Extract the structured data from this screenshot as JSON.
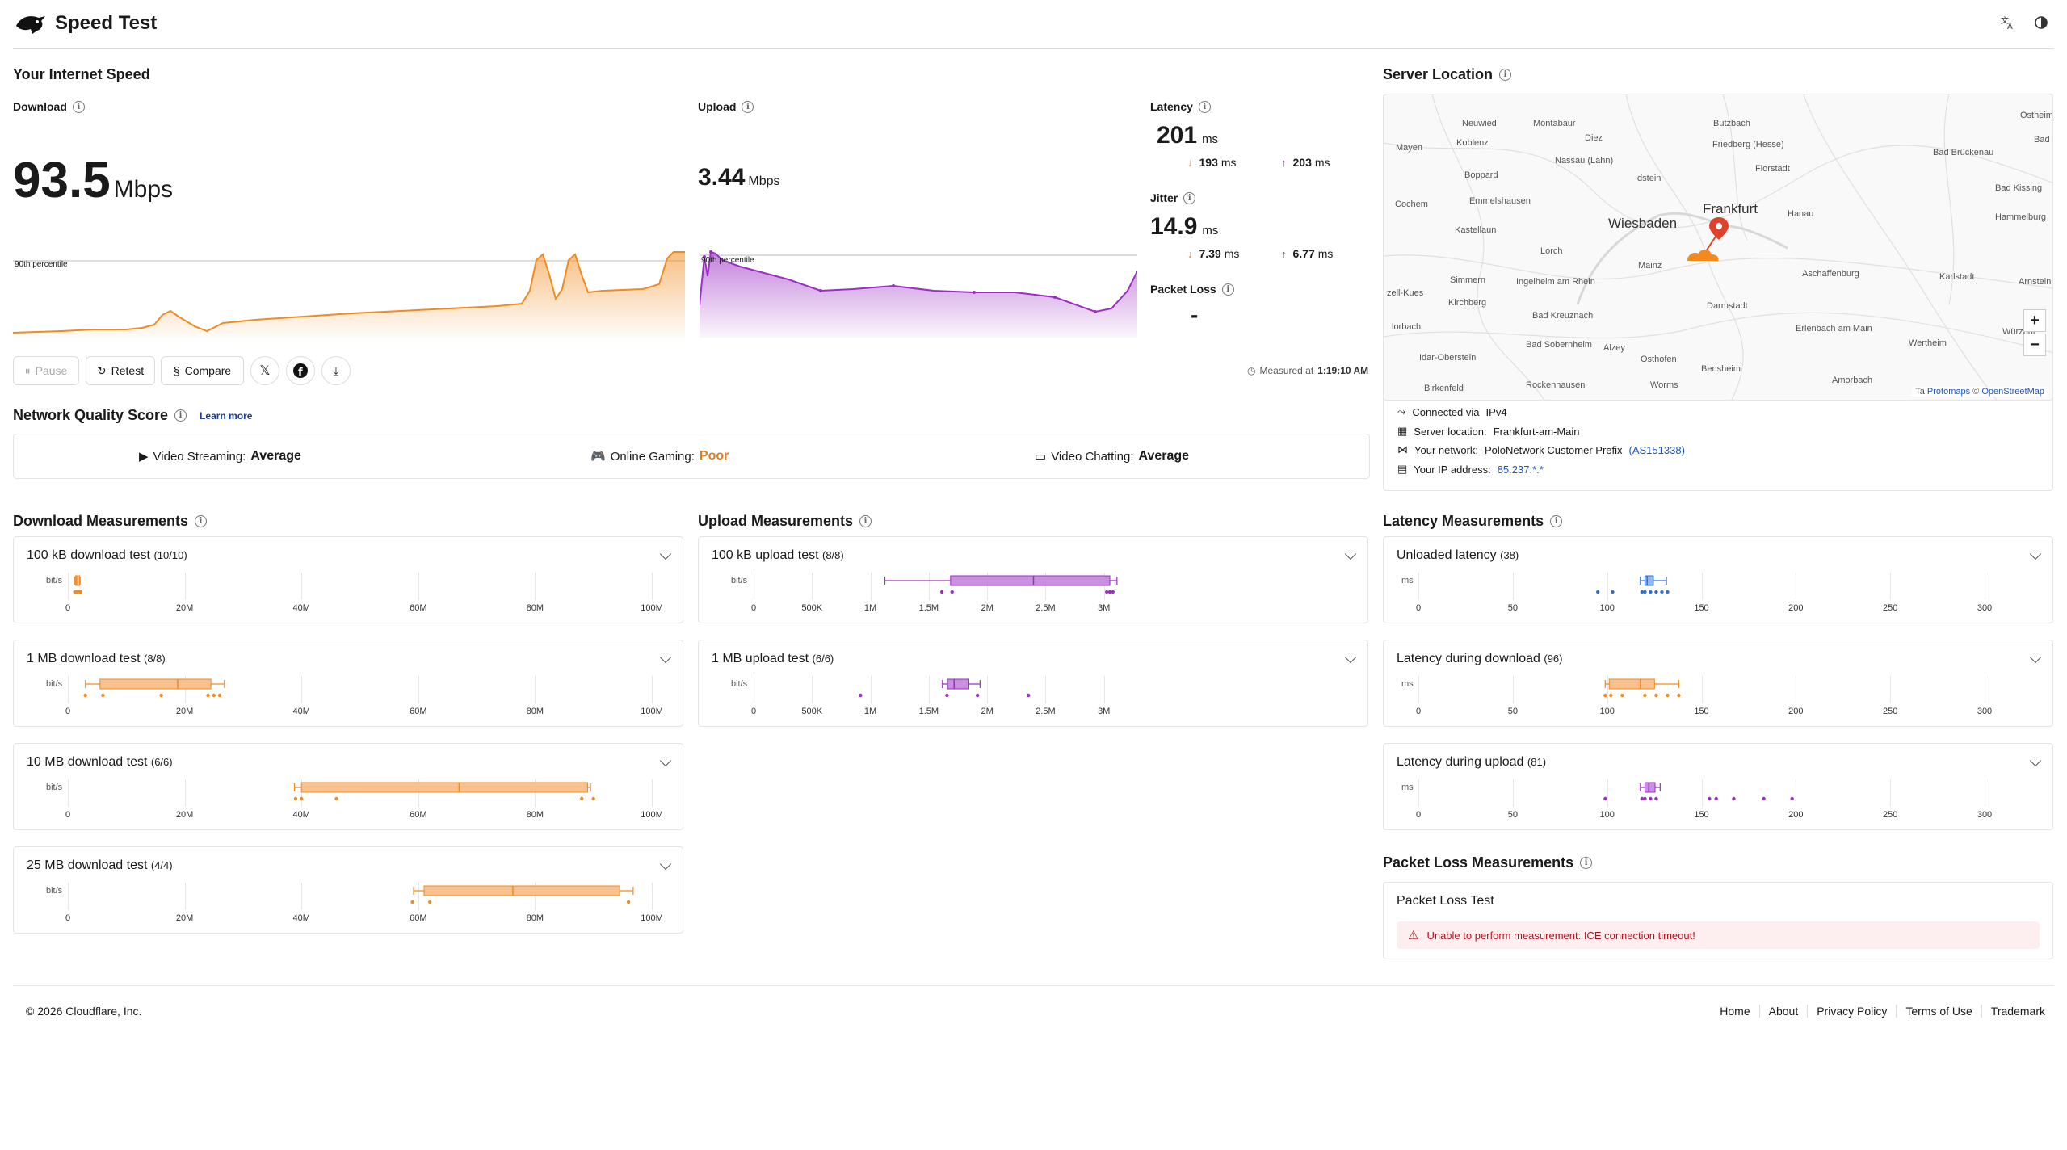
{
  "header": {
    "title": "Speed Test",
    "translate_icon": "translate-icon",
    "theme_icon": "theme-toggle-icon"
  },
  "speed": {
    "title": "Your Internet Speed",
    "download": {
      "label": "Download",
      "value": "93.5",
      "unit": "Mbps",
      "percentile_label": "90th percentile"
    },
    "upload": {
      "label": "Upload",
      "value": "3.44",
      "unit": "Mbps",
      "percentile_label": "90th percentile"
    },
    "latency": {
      "label": "Latency",
      "value": "201",
      "unit": "ms",
      "down": "193",
      "up": "203",
      "sub_unit": "ms"
    },
    "jitter": {
      "label": "Jitter",
      "value": "14.9",
      "unit": "ms",
      "down": "7.39",
      "up": "6.77",
      "sub_unit": "ms"
    },
    "packet_loss": {
      "label": "Packet Loss",
      "value": "-"
    },
    "measured_at_prefix": "Measured at",
    "measured_at": "1:19:10 AM"
  },
  "actions": {
    "pause": "Pause",
    "retest": "Retest",
    "compare": "Compare"
  },
  "quality": {
    "title": "Network Quality Score",
    "learn_more": "Learn more",
    "items": [
      {
        "label": "Video Streaming:",
        "value": "Average",
        "color": "#333333"
      },
      {
        "label": "Online Gaming:",
        "value": "Poor",
        "color": "#e07d1e"
      },
      {
        "label": "Video Chatting:",
        "value": "Average",
        "color": "#333333"
      }
    ]
  },
  "server": {
    "title": "Server Location",
    "connected_via_label": "Connected via",
    "connected_via": "IPv4",
    "server_location_label": "Server location:",
    "server_location": "Frankfurt-am-Main",
    "network_label": "Your network:",
    "network": "PoloNetwork Customer Prefix",
    "asn": "(AS151338)",
    "ip_label": "Your IP address:",
    "ip": "85.237.*.*",
    "attribution_prefix": "Ta",
    "attribution_protomaps": "Protomaps",
    "attribution_sep": "©",
    "attribution_osm": "OpenStreetMap",
    "zoom_in": "+",
    "zoom_out": "−"
  },
  "map_labels": {
    "neuwied": "Neuwied",
    "montabaur": "Montabaur",
    "butzbach": "Butzbach",
    "ostheim": "Ostheim",
    "mayen": "Mayen",
    "koblenz": "Koblenz",
    "diez": "Diez",
    "friedberg": "Friedberg (Hesse)",
    "bad_bruckenau": "Bad Brückenau",
    "nassau": "Nassau (Lahn)",
    "boppard": "Boppard",
    "idstein": "Idstein",
    "florstadt": "Florstadt",
    "bad_kissing": "Bad Kissing",
    "cochem": "Cochem",
    "emmelshausen": "Emmelshausen",
    "frankfurt": "Frankfurt",
    "hanau": "Hanau",
    "hammelburg": "Hammelburg",
    "kastellaun": "Kastellaun",
    "wiesbaden": "Wiesbaden",
    "lorch": "Lorch",
    "mainz": "Mainz",
    "aschaffenburg": "Aschaffenburg",
    "karlstadt": "Karlstadt",
    "arnstein": "Arnstein",
    "simmern": "Simmern",
    "ingelheim": "Ingelheim am Rhein",
    "kirchberg": "Kirchberg",
    "darmstadt": "Darmstadt",
    "bad_kreuznach": "Bad Kreuznach",
    "erlenbach": "Erlenbach am Main",
    "wertheim": "Wertheim",
    "wurzburg": "Würzbur",
    "bad_sobernheim": "Bad Sobernheim",
    "alzey": "Alzey",
    "osthofen": "Osthofen",
    "idar": "Idar-Oberstein",
    "bensheim": "Bensheim",
    "amorbach": "Amorbach",
    "birkenfeld": "Birkenfeld",
    "rockenhausen": "Rockenhausen",
    "worms": "Worms",
    "zell": "zell-Kues",
    "morbach": "lorbach",
    "bad_an": "Bad\nan"
  },
  "download_measurements": {
    "title": "Download Measurements",
    "unit": "bit/s",
    "ticks": [
      "0",
      "20M",
      "40M",
      "60M",
      "80M",
      "100M"
    ],
    "tests": [
      {
        "name": "100 kB download test",
        "count": "(10/10)"
      },
      {
        "name": "1 MB download test",
        "count": "(8/8)"
      },
      {
        "name": "10 MB download test",
        "count": "(6/6)"
      },
      {
        "name": "25 MB download test",
        "count": "(4/4)"
      }
    ]
  },
  "upload_measurements": {
    "title": "Upload Measurements",
    "unit": "bit/s",
    "ticks": [
      "0",
      "500K",
      "1M",
      "1.5M",
      "2M",
      "2.5M",
      "3M"
    ],
    "tests": [
      {
        "name": "100 kB upload test",
        "count": "(8/8)"
      },
      {
        "name": "1 MB upload test",
        "count": "(6/6)"
      }
    ]
  },
  "latency_measurements": {
    "title": "Latency Measurements",
    "unit": "ms",
    "ticks": [
      "0",
      "50",
      "100",
      "150",
      "200",
      "250",
      "300"
    ],
    "tests": [
      {
        "name": "Unloaded latency",
        "count": "(38)"
      },
      {
        "name": "Latency during download",
        "count": "(96)"
      },
      {
        "name": "Latency during upload",
        "count": "(81)"
      }
    ]
  },
  "packet_loss_measurements": {
    "title": "Packet Loss Measurements",
    "card_title": "Packet Loss Test",
    "error": "Unable to perform measurement: ICE connection timeout!"
  },
  "footer": {
    "copyright": "© 2026 Cloudflare, Inc.",
    "links": [
      "Home",
      "About",
      "Privacy Policy",
      "Terms of Use",
      "Trademark"
    ]
  },
  "colors": {
    "download": "#f28a1e",
    "upload": "#9c2ec4",
    "latency_unloaded": "#2f6fd6",
    "accent_link": "#1a57c4"
  }
}
